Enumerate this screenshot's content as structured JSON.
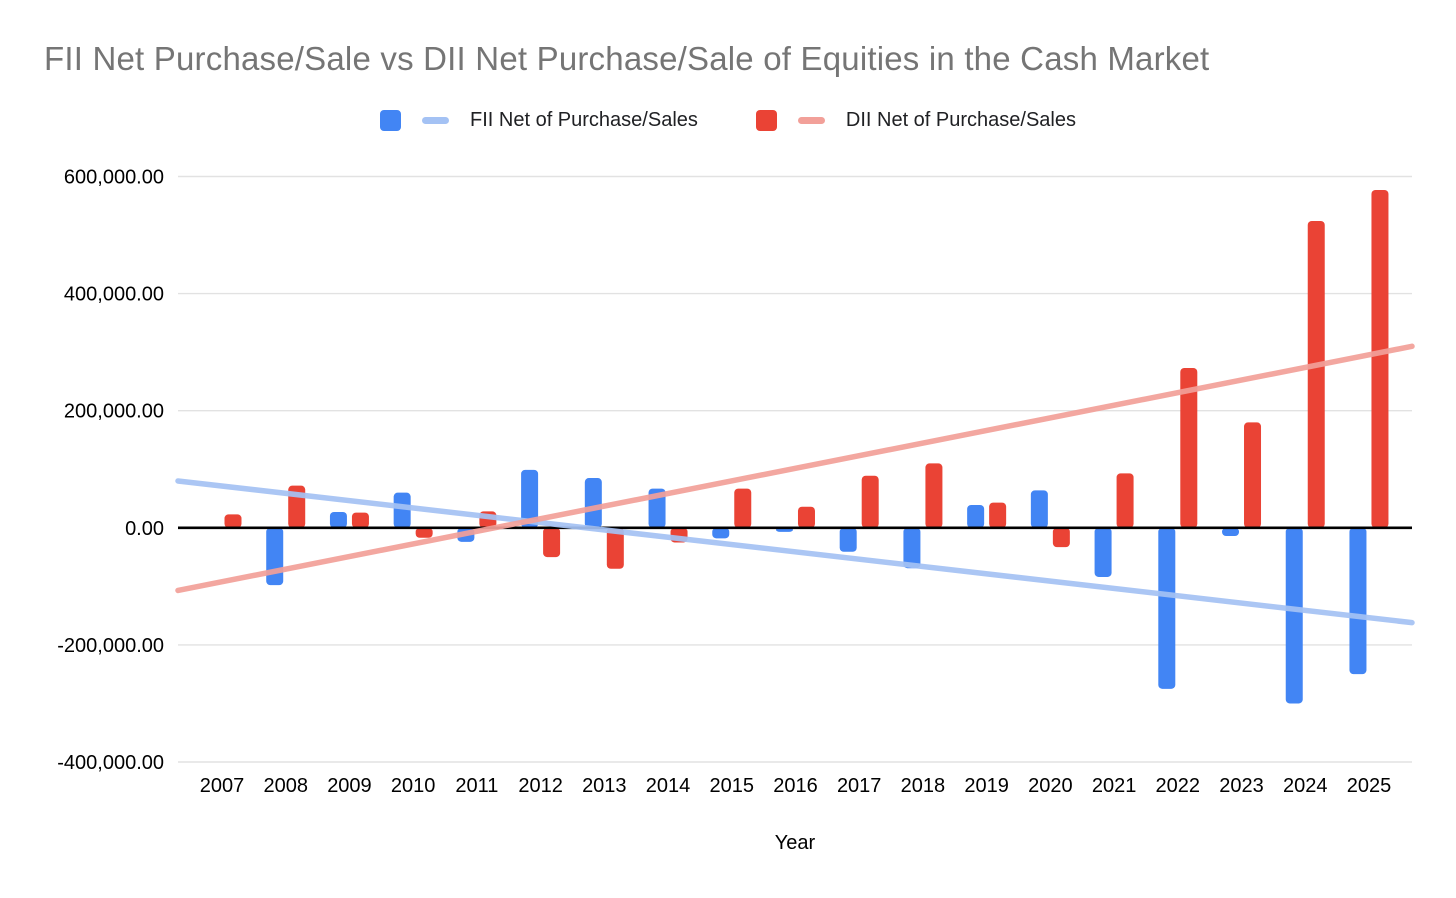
{
  "title": {
    "text": "FII Net Purchase/Sale vs DII Net Purchase/Sale of Equities in the Cash Market",
    "color": "#757575"
  },
  "legend": {
    "items": [
      {
        "label": "FII Net of Purchase/Sales",
        "bar_color": "#4285F4",
        "trend_color": "#A4C2F4"
      },
      {
        "label": "DII Net of Purchase/Sales",
        "bar_color": "#EA4335",
        "trend_color": "#F2A099"
      }
    ]
  },
  "chart_data": {
    "type": "bar",
    "title": "FII Net Purchase/Sale vs DII Net Purchase/Sale of Equities in the Cash Market",
    "xlabel": "Year",
    "ylabel": "",
    "ylim": [
      -400000,
      600000
    ],
    "ytick_step": 200000,
    "ytick_labels": [
      "600,000.00",
      "400,000.00",
      "200,000.00",
      "0.00",
      "-200,000.00",
      "-400,000.00"
    ],
    "grid": true,
    "legend_position": "top",
    "categories": [
      "2007",
      "2008",
      "2009",
      "2010",
      "2011",
      "2012",
      "2013",
      "2014",
      "2015",
      "2016",
      "2017",
      "2018",
      "2019",
      "2020",
      "2021",
      "2022",
      "2023",
      "2024",
      "2025"
    ],
    "series": [
      {
        "name": "FII Net of Purchase/Sales",
        "color": "#4285F4",
        "values": [
          0,
          -98000,
          27000,
          60000,
          -24000,
          99000,
          85000,
          67000,
          -18000,
          -7000,
          -41000,
          -69000,
          39000,
          64000,
          -84000,
          -275000,
          -14000,
          -300000,
          -250000
        ]
      },
      {
        "name": "DII Net of Purchase/Sales",
        "color": "#EA4335",
        "values": [
          23000,
          72000,
          26000,
          -17000,
          28000,
          -50000,
          -70000,
          -25000,
          67000,
          36000,
          89000,
          110000,
          43000,
          -33000,
          93000,
          273000,
          180000,
          524000,
          577000
        ]
      }
    ],
    "trendlines": [
      {
        "series": "FII Net of Purchase/Sales",
        "color": "#A4C2F4",
        "start_value": 80000,
        "end_value": -162000
      },
      {
        "series": "DII Net of Purchase/Sales",
        "color": "#F2A099",
        "start_value": -107000,
        "end_value": 310000
      }
    ],
    "colors": {
      "gridline": "#e2e2e2",
      "zero_axis": "#000000",
      "axis_text": "#000000"
    }
  }
}
